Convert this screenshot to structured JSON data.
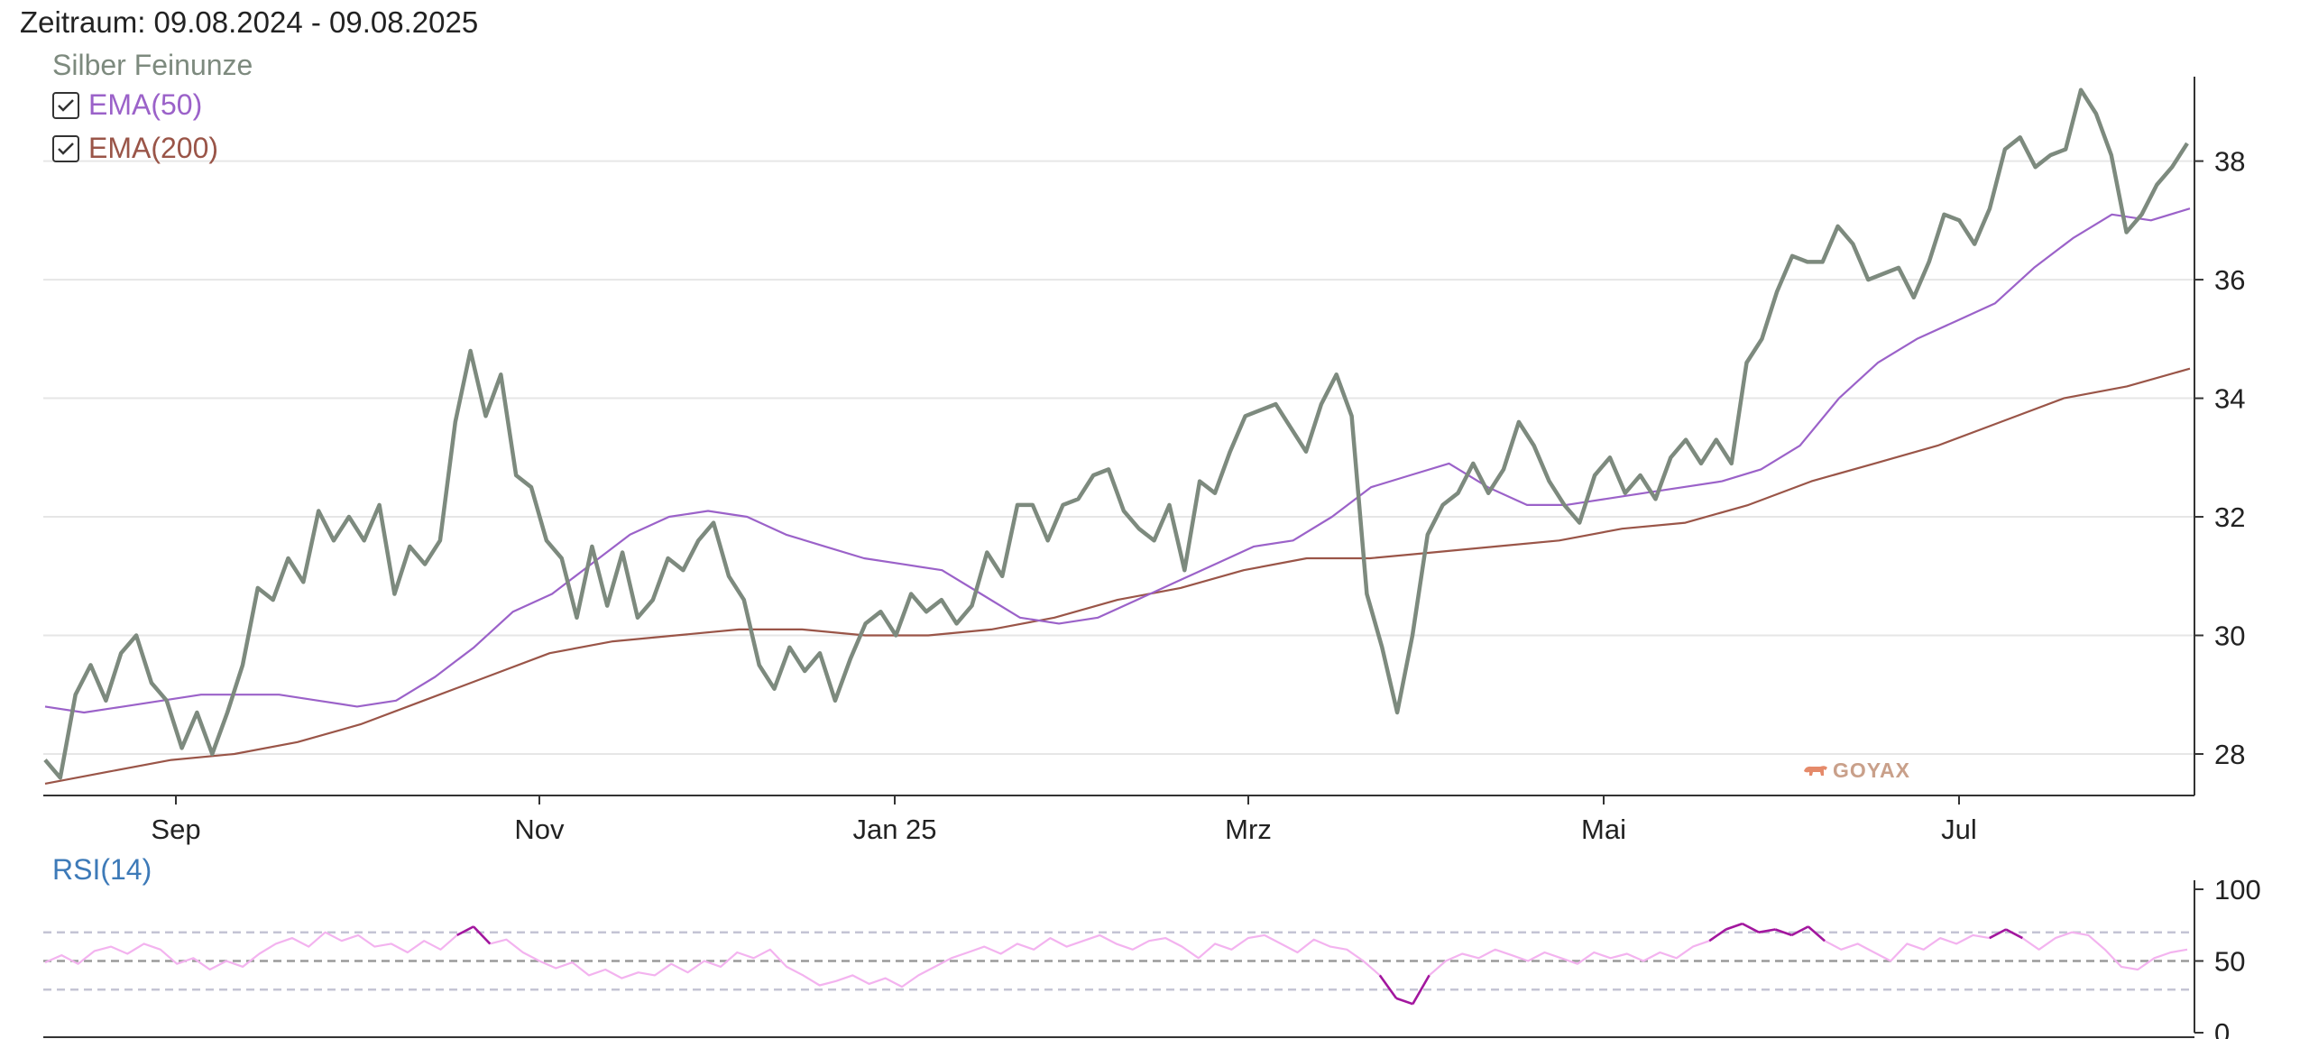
{
  "header": {
    "period": "Zeitraum: 09.08.2024 - 09.08.2025"
  },
  "legend": {
    "series": "Silber Feinunze",
    "ema50": "EMA(50)",
    "ema200": "EMA(200)"
  },
  "rsi_label": "RSI(14)",
  "watermark": "GOYAX",
  "colors": {
    "price": "#7d8a7e",
    "ema50": "#9b62c9",
    "ema200": "#9a5548",
    "rsi": "#f3b3ef",
    "rsi_extreme": "#a2179e",
    "grid": "#e6e6e6",
    "rsi_label": "#3d7ab8"
  },
  "chart_data": [
    {
      "type": "line",
      "x_tick_labels": [
        "Sep",
        "Nov",
        "Jan 25",
        "Mrz",
        "Mai",
        "Jul"
      ],
      "y_ticks": [
        28,
        30,
        32,
        34,
        36,
        38
      ],
      "ylim": [
        27.3,
        39.5
      ],
      "grid": true,
      "series": [
        {
          "name": "Silber Feinunze",
          "values": [
            27.9,
            27.6,
            29.0,
            29.5,
            28.9,
            29.7,
            30.0,
            29.2,
            28.9,
            28.1,
            28.7,
            28.0,
            28.7,
            29.5,
            30.8,
            30.6,
            31.3,
            30.9,
            32.1,
            31.6,
            32.0,
            31.6,
            32.2,
            30.7,
            31.5,
            31.2,
            31.6,
            33.6,
            34.8,
            33.7,
            34.4,
            32.7,
            32.5,
            31.6,
            31.3,
            30.3,
            31.5,
            30.5,
            31.4,
            30.3,
            30.6,
            31.3,
            31.1,
            31.6,
            31.9,
            31.0,
            30.6,
            29.5,
            29.1,
            29.8,
            29.4,
            29.7,
            28.9,
            29.6,
            30.2,
            30.4,
            30.0,
            30.7,
            30.4,
            30.6,
            30.2,
            30.5,
            31.4,
            31.0,
            32.2,
            32.2,
            31.6,
            32.2,
            32.3,
            32.7,
            32.8,
            32.1,
            31.8,
            31.6,
            32.2,
            31.1,
            32.6,
            32.4,
            33.1,
            33.7,
            33.8,
            33.9,
            33.5,
            33.1,
            33.9,
            34.4,
            33.7,
            30.7,
            29.8,
            28.7,
            30.0,
            31.7,
            32.2,
            32.4,
            32.9,
            32.4,
            32.8,
            33.6,
            33.2,
            32.6,
            32.2,
            31.9,
            32.7,
            33.0,
            32.4,
            32.7,
            32.3,
            33.0,
            33.3,
            32.9,
            33.3,
            32.9,
            34.6,
            35.0,
            35.8,
            36.4,
            36.3,
            36.3,
            36.9,
            36.6,
            36.0,
            36.1,
            36.2,
            35.7,
            36.3,
            37.1,
            37.0,
            36.6,
            37.2,
            38.2,
            38.4,
            37.9,
            38.1,
            38.2,
            39.2,
            38.8,
            38.1,
            36.8,
            37.1,
            37.6,
            37.9,
            38.3
          ]
        },
        {
          "name": "EMA(50)",
          "values": [
            28.8,
            28.7,
            28.8,
            28.9,
            29.0,
            29.0,
            29.0,
            28.9,
            28.8,
            28.9,
            29.3,
            29.8,
            30.4,
            30.7,
            31.2,
            31.7,
            32.0,
            32.1,
            32.0,
            31.7,
            31.5,
            31.3,
            31.2,
            31.1,
            30.7,
            30.3,
            30.2,
            30.3,
            30.6,
            30.9,
            31.2,
            31.5,
            31.6,
            32.0,
            32.5,
            32.7,
            32.9,
            32.5,
            32.2,
            32.2,
            32.3,
            32.4,
            32.5,
            32.6,
            32.8,
            33.2,
            34.0,
            34.6,
            35.0,
            35.3,
            35.6,
            36.2,
            36.7,
            37.1,
            37.0,
            37.2
          ]
        },
        {
          "name": "EMA(200)",
          "values": [
            27.5,
            27.7,
            27.9,
            28.0,
            28.2,
            28.5,
            28.9,
            29.3,
            29.7,
            29.9,
            30.0,
            30.1,
            30.1,
            30.0,
            30.0,
            30.1,
            30.3,
            30.6,
            30.8,
            31.1,
            31.3,
            31.3,
            31.4,
            31.5,
            31.6,
            31.8,
            31.9,
            32.2,
            32.6,
            32.9,
            33.2,
            33.6,
            34.0,
            34.2,
            34.5
          ]
        }
      ]
    },
    {
      "type": "line",
      "title": "RSI(14)",
      "y_ticks": [
        0,
        50,
        100
      ],
      "ylim": [
        0,
        100
      ],
      "reference_lines": [
        30,
        50,
        70
      ],
      "series": [
        {
          "name": "RSI(14)",
          "values": [
            49,
            54,
            48,
            57,
            60,
            55,
            62,
            58,
            48,
            52,
            44,
            50,
            46,
            55,
            62,
            66,
            60,
            70,
            64,
            68,
            60,
            62,
            56,
            64,
            58,
            68,
            74,
            62,
            65,
            56,
            50,
            45,
            49,
            40,
            44,
            38,
            42,
            40,
            48,
            42,
            50,
            46,
            56,
            52,
            58,
            46,
            40,
            33,
            36,
            40,
            34,
            38,
            32,
            40,
            46,
            52,
            56,
            60,
            55,
            62,
            58,
            66,
            60,
            64,
            68,
            62,
            58,
            64,
            66,
            60,
            52,
            62,
            58,
            66,
            68,
            62,
            56,
            65,
            60,
            58,
            50,
            40,
            24,
            20,
            40,
            50,
            55,
            52,
            58,
            54,
            50,
            56,
            52,
            48,
            56,
            52,
            55,
            50,
            56,
            52,
            60,
            64,
            72,
            76,
            70,
            72,
            68,
            74,
            64,
            58,
            62,
            56,
            50,
            62,
            58,
            66,
            62,
            68,
            66,
            72,
            66,
            58,
            66,
            70,
            68,
            58,
            46,
            44,
            52,
            56,
            58
          ]
        }
      ]
    }
  ]
}
